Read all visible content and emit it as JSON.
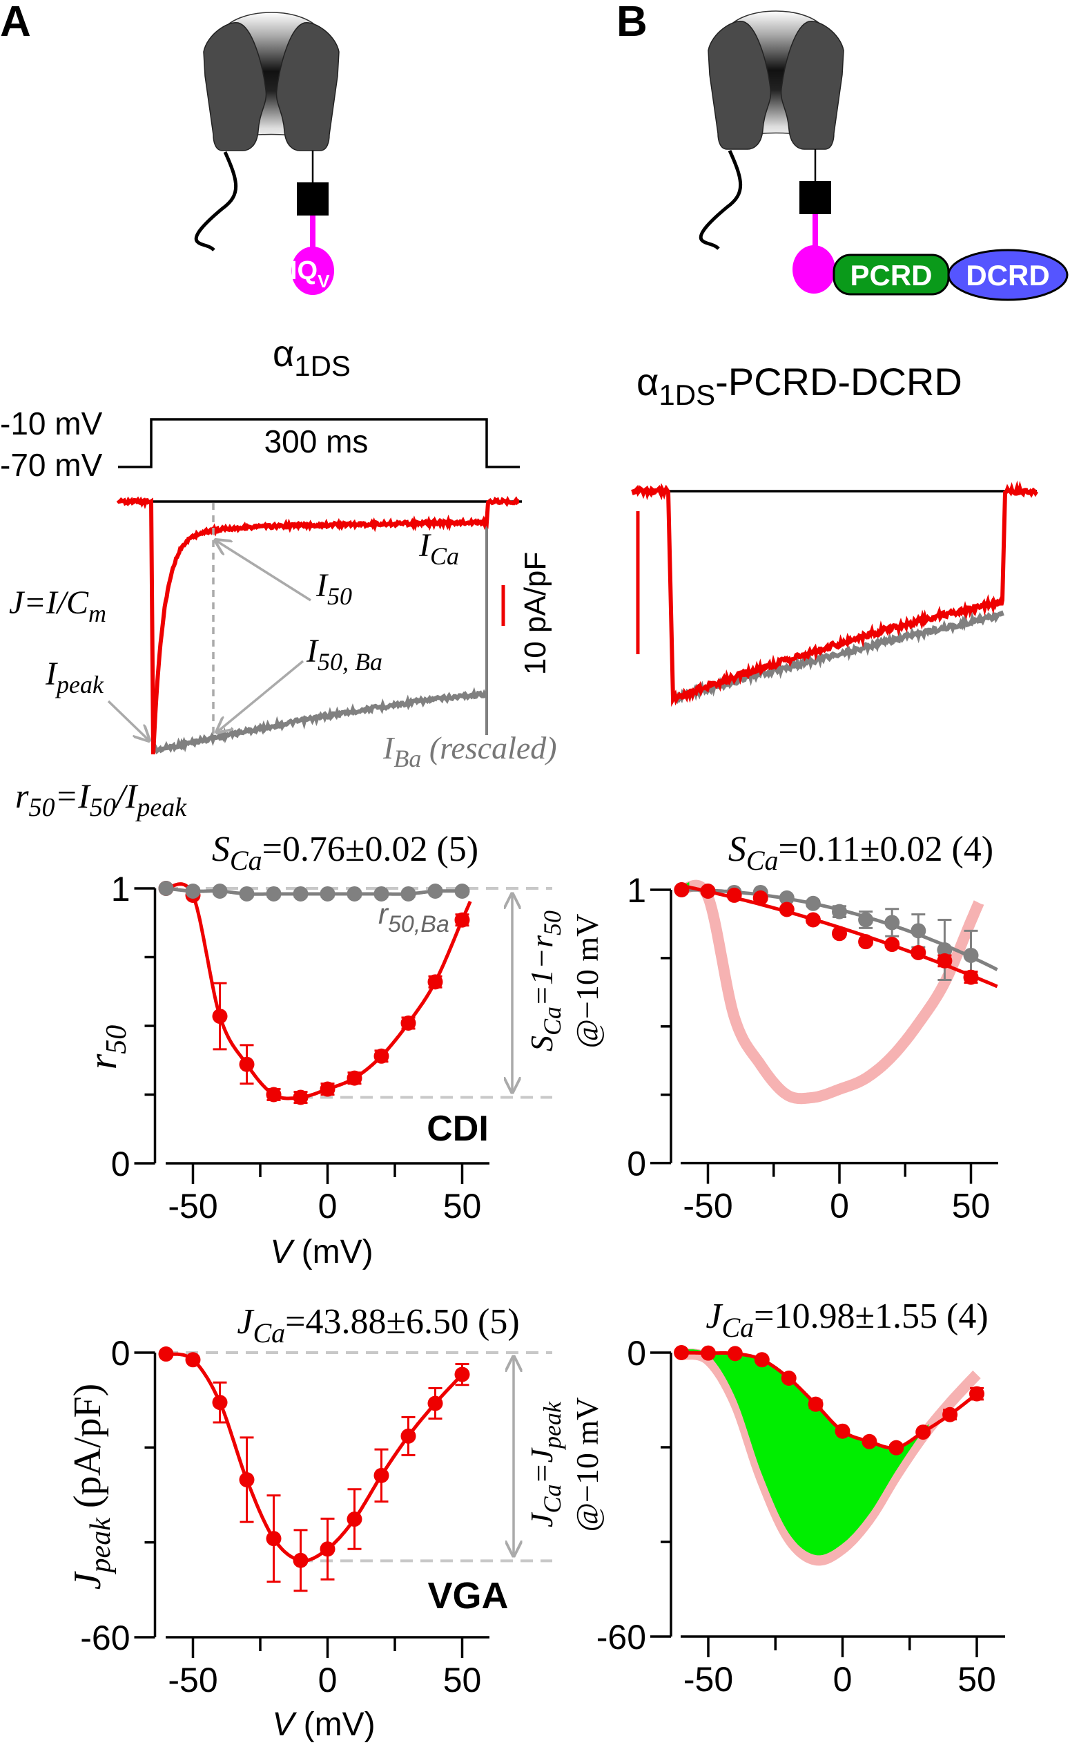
{
  "panel_labels": [
    "A",
    "B"
  ],
  "constructs": {
    "a": {
      "title_main": "α",
      "title_sub": "1DS",
      "domain_label": "IQ",
      "domain_sub": "V"
    },
    "b": {
      "title_main": "α",
      "title_sub": "1DS",
      "title_rest": "-PCRD-DCRD",
      "pcrd": "PCRD",
      "dcrd": "DCRD"
    }
  },
  "protocol": {
    "v_high": "-10 mV",
    "v_low": "-70 mV",
    "duration": "300 ms"
  },
  "trace_labels": {
    "ica": {
      "main": "I",
      "sub": "Ca"
    },
    "i50": {
      "main": "I",
      "sub": "50"
    },
    "i50ba": {
      "main": "I",
      "sub": "50, Ba"
    },
    "ipeak": {
      "main": "I",
      "sub": "peak"
    },
    "j_def": {
      "main": "J=I/C",
      "sub": "m"
    },
    "iba": {
      "main": "I",
      "sub": "Ba",
      "rest": " (rescaled)"
    },
    "r50_def": {
      "a": "r",
      "a_sub": "50",
      "b": "=I",
      "b_sub": "50",
      "c": "/I",
      "c_sub": "peak"
    },
    "scale_bar": "10 pA/pF"
  },
  "annotations": {
    "sca_formula": {
      "main": "S",
      "sub": "Ca",
      "rest": "=1−r",
      "rest_sub": "50"
    },
    "jca_formula": {
      "main": "J",
      "sub": "Ca",
      "rest": "=J",
      "rest_sub": "peak"
    },
    "at_voltage": "@−10 mV",
    "cdi": "CDI",
    "vga": "VGA",
    "r50ba": {
      "main": "r",
      "sub": "50,Ba"
    }
  },
  "colors": {
    "ca": "#ee0000",
    "ba": "#808080",
    "reference": "#f6b2b2",
    "difference_fill": "#00ee00",
    "iq": "#ff00ff",
    "pcrd": "#0a9a1a",
    "dcrd": "#5555ff",
    "guide": "#c8c8c8"
  },
  "chart_data": [
    {
      "id": "a_r50",
      "type": "line",
      "title": {
        "main": "S",
        "sub": "Ca",
        "rest": "=0.76±0.02 (5)"
      },
      "xlabel": {
        "main": "V",
        "rest": " (mV)"
      },
      "ylabel": {
        "main": "r",
        "sub": "50"
      },
      "x": [
        -60,
        -50,
        -40,
        -30,
        -20,
        -10,
        0,
        10,
        20,
        30,
        40,
        50
      ],
      "xlim": [
        -62,
        60
      ],
      "ylim": [
        0,
        1
      ],
      "xticks": [
        -50,
        -25,
        0,
        25,
        50
      ],
      "xtick_labels": [
        "-50",
        "",
        "0",
        "",
        "50"
      ],
      "yticks": [
        0,
        0.25,
        0.5,
        0.75,
        1
      ],
      "ytick_labels": [
        "0",
        "",
        "",
        "",
        "1"
      ],
      "series": [
        {
          "color": "#ee0000",
          "values": [
            1.0,
            0.975,
            0.535,
            0.36,
            0.25,
            0.24,
            0.27,
            0.31,
            0.39,
            0.51,
            0.66,
            0.885
          ],
          "err": [
            0,
            0.01,
            0.12,
            0.07,
            0.02,
            0.02,
            0.02,
            0.02,
            0.02,
            0.02,
            0.02,
            0.02
          ]
        },
        {
          "color": "#808080",
          "values": [
            1.0,
            0.99,
            0.99,
            0.98,
            0.98,
            0.98,
            0.98,
            0.98,
            0.98,
            0.98,
            0.99,
            0.99
          ],
          "err": [
            0,
            0.01,
            0.01,
            0.01,
            0.01,
            0.01,
            0.01,
            0.01,
            0.01,
            0.01,
            0.01,
            0.01
          ]
        }
      ],
      "guides": [
        1,
        0.24
      ],
      "grid": false
    },
    {
      "id": "b_r50",
      "type": "line",
      "title": {
        "main": "S",
        "sub": "Ca",
        "rest": "=0.11±0.02 (4)"
      },
      "x": [
        -60,
        -50,
        -40,
        -30,
        -20,
        -10,
        0,
        10,
        20,
        30,
        40,
        50
      ],
      "xlim": [
        -62,
        60
      ],
      "ylim": [
        0,
        1
      ],
      "xticks": [
        -50,
        -25,
        0,
        25,
        50
      ],
      "xtick_labels": [
        "-50",
        "",
        "0",
        "",
        "50"
      ],
      "yticks": [
        0,
        0.25,
        0.5,
        0.75,
        1
      ],
      "ytick_labels": [
        "0",
        "",
        "",
        "",
        "1"
      ],
      "series": [
        {
          "color": "#808080",
          "values": [
            1.0,
            0.995,
            0.99,
            0.99,
            0.97,
            0.95,
            0.92,
            0.89,
            0.88,
            0.85,
            0.78,
            0.76
          ],
          "err": [
            0,
            0,
            0,
            0,
            0,
            0.01,
            0.02,
            0.03,
            0.05,
            0.06,
            0.11,
            0.09
          ]
        },
        {
          "color": "#ee0000",
          "values": [
            1.0,
            0.995,
            0.98,
            0.97,
            0.928,
            0.89,
            0.84,
            0.81,
            0.8,
            0.77,
            0.74,
            0.68
          ],
          "err": [
            0,
            0,
            0,
            0,
            0,
            0.01,
            0.01,
            0.01,
            0.01,
            0.01,
            0.02,
            0.02
          ]
        }
      ],
      "reference": "a_r50",
      "grid": false
    },
    {
      "id": "a_j",
      "type": "line",
      "title": {
        "main": "J",
        "sub": "Ca",
        "rest": "=43.88±6.50 (5)"
      },
      "xlabel": {
        "main": "V",
        "rest": " (mV)"
      },
      "ylabel": {
        "main": "J",
        "sub": "peak",
        "rest": " (pA/pF)"
      },
      "x": [
        -60,
        -50,
        -40,
        -30,
        -20,
        -10,
        0,
        10,
        20,
        30,
        40,
        50
      ],
      "xlim": [
        -62,
        60
      ],
      "ylim": [
        -60,
        0
      ],
      "xticks": [
        -50,
        -25,
        0,
        25,
        50
      ],
      "xtick_labels": [
        "-50",
        "",
        "0",
        "",
        "50"
      ],
      "yticks": [
        -60,
        -40,
        -20,
        0
      ],
      "ytick_labels": [
        "-60",
        "",
        "",
        "0"
      ],
      "series": [
        {
          "color": "#ee0000",
          "values": [
            -0.3,
            -1.5,
            -10.5,
            -26.8,
            -39.2,
            -43.8,
            -41.4,
            -35.1,
            -25.9,
            -17.6,
            -10.7,
            -4.6
          ],
          "err": [
            0,
            0,
            4.2,
            8.9,
            9.1,
            6.4,
            6.4,
            6.3,
            5.5,
            4.0,
            3.2,
            2.2
          ]
        }
      ],
      "guides": [
        0,
        -43.88
      ],
      "grid": false
    },
    {
      "id": "b_j",
      "type": "line",
      "title": {
        "main": "J",
        "sub": "Ca",
        "rest": "=10.98±1.55 (4)"
      },
      "x": [
        -60,
        -50,
        -40,
        -30,
        -20,
        -10,
        0,
        10,
        20,
        30,
        40,
        50
      ],
      "xlim": [
        -62,
        60
      ],
      "ylim": [
        -60,
        0
      ],
      "xticks": [
        -50,
        -25,
        0,
        25,
        50
      ],
      "xtick_labels": [
        "-50",
        "",
        "0",
        "",
        "50"
      ],
      "yticks": [
        -60,
        -40,
        -20,
        0
      ],
      "ytick_labels": [
        "-60",
        "",
        "",
        "0"
      ],
      "series": [
        {
          "color": "#ee0000",
          "values": [
            0,
            -0.1,
            -0.2,
            -1.5,
            -5.4,
            -10.9,
            -16.6,
            -18.8,
            -20.1,
            -16.8,
            -13.1,
            -8.7
          ],
          "err": [
            0,
            0,
            0,
            0,
            0.5,
            0.8,
            0.5,
            0.5,
            0.6,
            0.5,
            1.0,
            1.2
          ]
        }
      ],
      "reference": "a_j",
      "grid": false
    }
  ]
}
